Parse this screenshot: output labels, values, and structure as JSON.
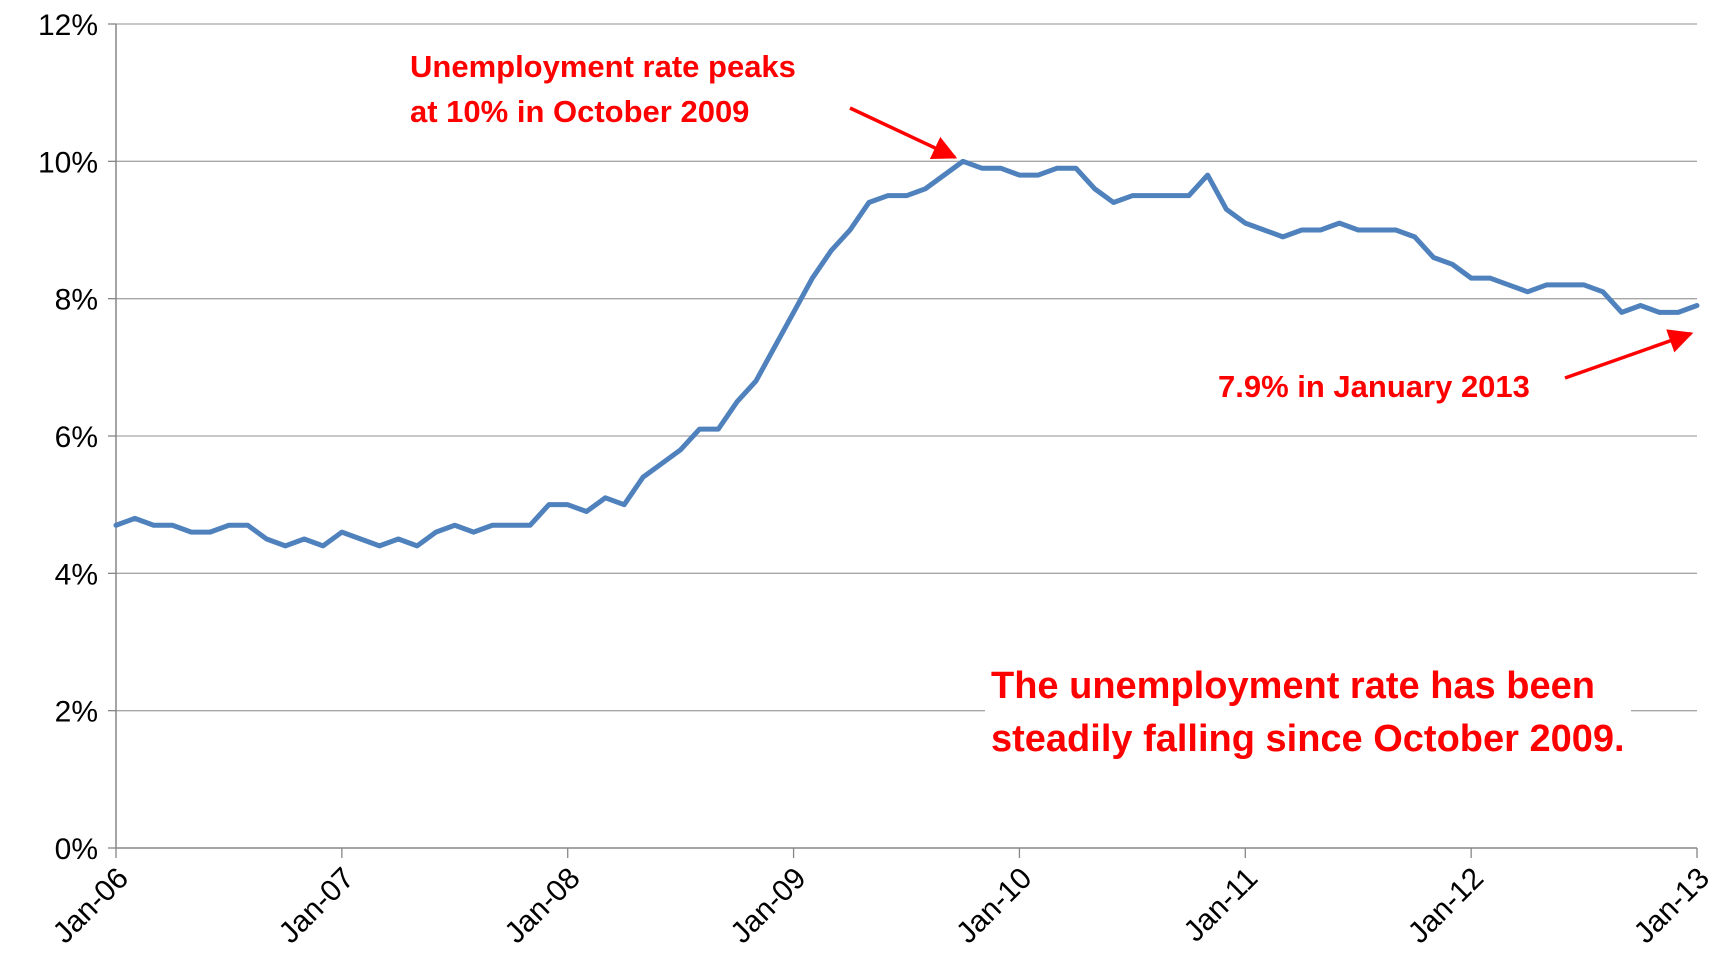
{
  "chart_data": {
    "type": "line",
    "title": "",
    "xlabel": "",
    "ylabel": "",
    "x_tick_labels": [
      "Jan-06",
      "Jan-07",
      "Jan-08",
      "Jan-09",
      "Jan-10",
      "Jan-11",
      "Jan-12",
      "Jan-13"
    ],
    "y_tick_labels": [
      "0%",
      "2%",
      "4%",
      "6%",
      "8%",
      "10%",
      "12%"
    ],
    "ylim": [
      0,
      12
    ],
    "y_unit": "%",
    "grid": "horizontal",
    "legend": "none",
    "series": [
      {
        "color": "#4f81bd",
        "values": [
          4.7,
          4.8,
          4.7,
          4.7,
          4.6,
          4.6,
          4.7,
          4.7,
          4.5,
          4.4,
          4.5,
          4.4,
          4.6,
          4.5,
          4.4,
          4.5,
          4.4,
          4.6,
          4.7,
          4.6,
          4.7,
          4.7,
          4.7,
          5.0,
          5.0,
          4.9,
          5.1,
          5.0,
          5.4,
          5.6,
          5.8,
          6.1,
          6.1,
          6.5,
          6.8,
          7.3,
          7.8,
          8.3,
          8.7,
          9.0,
          9.4,
          9.5,
          9.5,
          9.6,
          9.8,
          10.0,
          9.9,
          9.9,
          9.8,
          9.8,
          9.9,
          9.9,
          9.6,
          9.4,
          9.5,
          9.5,
          9.5,
          9.5,
          9.8,
          9.3,
          9.1,
          9.0,
          8.9,
          9.0,
          9.0,
          9.1,
          9.0,
          9.0,
          9.0,
          8.9,
          8.6,
          8.5,
          8.3,
          8.3,
          8.2,
          8.1,
          8.2,
          8.2,
          8.2,
          8.1,
          7.8,
          7.9,
          7.8,
          7.8,
          7.9
        ]
      }
    ],
    "annotations": [
      {
        "text": "Unemployment rate peaks\nat 10% in October 2009",
        "target_index": 45,
        "color": "#ff0000"
      },
      {
        "text": "7.9% in January 2013",
        "target_index": 84,
        "color": "#ff0000"
      },
      {
        "text": "The unemployment rate has been\nsteadily falling since October 2009.",
        "color": "#ff0000"
      }
    ],
    "colors": {
      "line": "#4f81bd",
      "grid": "#a6a6a6",
      "axis": "#868686",
      "annotation": "#ff0000",
      "text": "#000000"
    }
  }
}
